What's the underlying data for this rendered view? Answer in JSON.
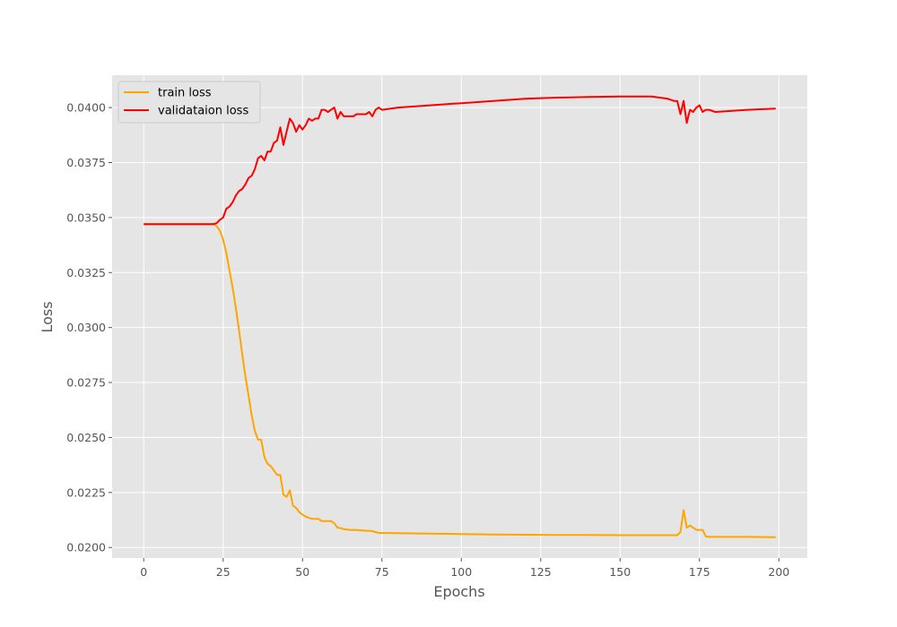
{
  "chart_data": {
    "type": "line",
    "title": "",
    "xlabel": "Epochs",
    "ylabel": "Loss",
    "xlim": [
      -9.95,
      208.95
    ],
    "ylim": [
      0.01952,
      0.04147
    ],
    "xticks": [
      0,
      25,
      50,
      75,
      100,
      125,
      150,
      175,
      200
    ],
    "xtick_labels": [
      "0",
      "25",
      "50",
      "75",
      "100",
      "125",
      "150",
      "175",
      "200"
    ],
    "yticks": [
      0.02,
      0.0225,
      0.025,
      0.0275,
      0.03,
      0.0325,
      0.035,
      0.0375,
      0.04
    ],
    "ytick_labels": [
      "0.0200",
      "0.0225",
      "0.0250",
      "0.0275",
      "0.0300",
      "0.0325",
      "0.0350",
      "0.0375",
      "0.0400"
    ],
    "grid": true,
    "legend_position": "top-left",
    "series": [
      {
        "name": "train loss",
        "color": "#FFA500",
        "x": [
          0,
          5,
          10,
          15,
          20,
          22,
          23,
          24,
          25,
          26,
          27,
          28,
          29,
          30,
          31,
          32,
          33,
          34,
          35,
          36,
          37,
          38,
          39,
          40,
          41,
          42,
          43,
          44,
          45,
          46,
          47,
          48,
          49,
          50,
          51,
          52,
          53,
          54,
          55,
          56,
          57,
          58,
          59,
          60,
          61,
          62,
          63,
          64,
          65,
          66,
          67,
          68,
          69,
          70,
          71,
          72,
          73,
          74,
          75,
          80,
          90,
          100,
          110,
          120,
          130,
          140,
          150,
          160,
          168,
          169,
          170,
          171,
          172,
          173,
          174,
          175,
          176,
          177,
          178,
          180,
          190,
          199
        ],
        "y": [
          0.0347,
          0.0347,
          0.0347,
          0.0347,
          0.0347,
          0.0347,
          0.0346,
          0.0344,
          0.034,
          0.0334,
          0.0326,
          0.0318,
          0.0309,
          0.0299,
          0.0288,
          0.0278,
          0.0269,
          0.026,
          0.0253,
          0.0249,
          0.0249,
          0.0241,
          0.0238,
          0.0237,
          0.0235,
          0.0233,
          0.0233,
          0.0224,
          0.0223,
          0.0226,
          0.0219,
          0.0218,
          0.0216,
          0.0215,
          0.0214,
          0.02135,
          0.0213,
          0.0213,
          0.0213,
          0.0212,
          0.0212,
          0.0212,
          0.0212,
          0.0211,
          0.0209,
          0.02088,
          0.02083,
          0.02082,
          0.0208,
          0.0208,
          0.0208,
          0.02078,
          0.02078,
          0.02076,
          0.02076,
          0.02074,
          0.0207,
          0.02066,
          0.02066,
          0.02065,
          0.02063,
          0.02061,
          0.02059,
          0.02058,
          0.02057,
          0.02057,
          0.02056,
          0.02056,
          0.02056,
          0.0207,
          0.0217,
          0.0209,
          0.021,
          0.0209,
          0.0208,
          0.0208,
          0.0208,
          0.0205,
          0.02048,
          0.02048,
          0.02048,
          0.02047
        ]
      },
      {
        "name": "validataion loss",
        "color": "#FF0000",
        "x": [
          0,
          5,
          10,
          15,
          20,
          22,
          23,
          24,
          25,
          26,
          27,
          28,
          29,
          30,
          31,
          32,
          33,
          34,
          35,
          36,
          37,
          38,
          39,
          40,
          41,
          42,
          43,
          44,
          45,
          46,
          47,
          48,
          49,
          50,
          51,
          52,
          53,
          54,
          55,
          56,
          57,
          58,
          59,
          60,
          61,
          62,
          63,
          64,
          65,
          66,
          67,
          68,
          69,
          70,
          71,
          72,
          73,
          74,
          75,
          80,
          90,
          100,
          110,
          120,
          130,
          140,
          150,
          160,
          165,
          167,
          168,
          169,
          170,
          171,
          172,
          173,
          174,
          175,
          176,
          177,
          178,
          180,
          190,
          199
        ],
        "y": [
          0.0347,
          0.0347,
          0.0347,
          0.0347,
          0.0347,
          0.0347,
          0.03475,
          0.0349,
          0.035,
          0.0354,
          0.0355,
          0.0357,
          0.036,
          0.0362,
          0.0363,
          0.0365,
          0.0368,
          0.0369,
          0.0372,
          0.0377,
          0.0378,
          0.0376,
          0.038,
          0.038,
          0.0384,
          0.0385,
          0.0391,
          0.0383,
          0.0389,
          0.0395,
          0.0393,
          0.0389,
          0.0392,
          0.039,
          0.0392,
          0.0395,
          0.0394,
          0.0395,
          0.0395,
          0.0399,
          0.0399,
          0.0398,
          0.0399,
          0.04,
          0.0395,
          0.0398,
          0.0396,
          0.0396,
          0.0396,
          0.0396,
          0.0397,
          0.0397,
          0.0397,
          0.0397,
          0.0398,
          0.0396,
          0.0399,
          0.04,
          0.0399,
          0.04,
          0.0401,
          0.0402,
          0.0403,
          0.0404,
          0.04045,
          0.04048,
          0.0405,
          0.0405,
          0.0404,
          0.0403,
          0.0403,
          0.0397,
          0.0403,
          0.0393,
          0.0399,
          0.0398,
          0.04,
          0.0401,
          0.0398,
          0.0399,
          0.0399,
          0.0398,
          0.0399,
          0.03995
        ]
      }
    ]
  }
}
